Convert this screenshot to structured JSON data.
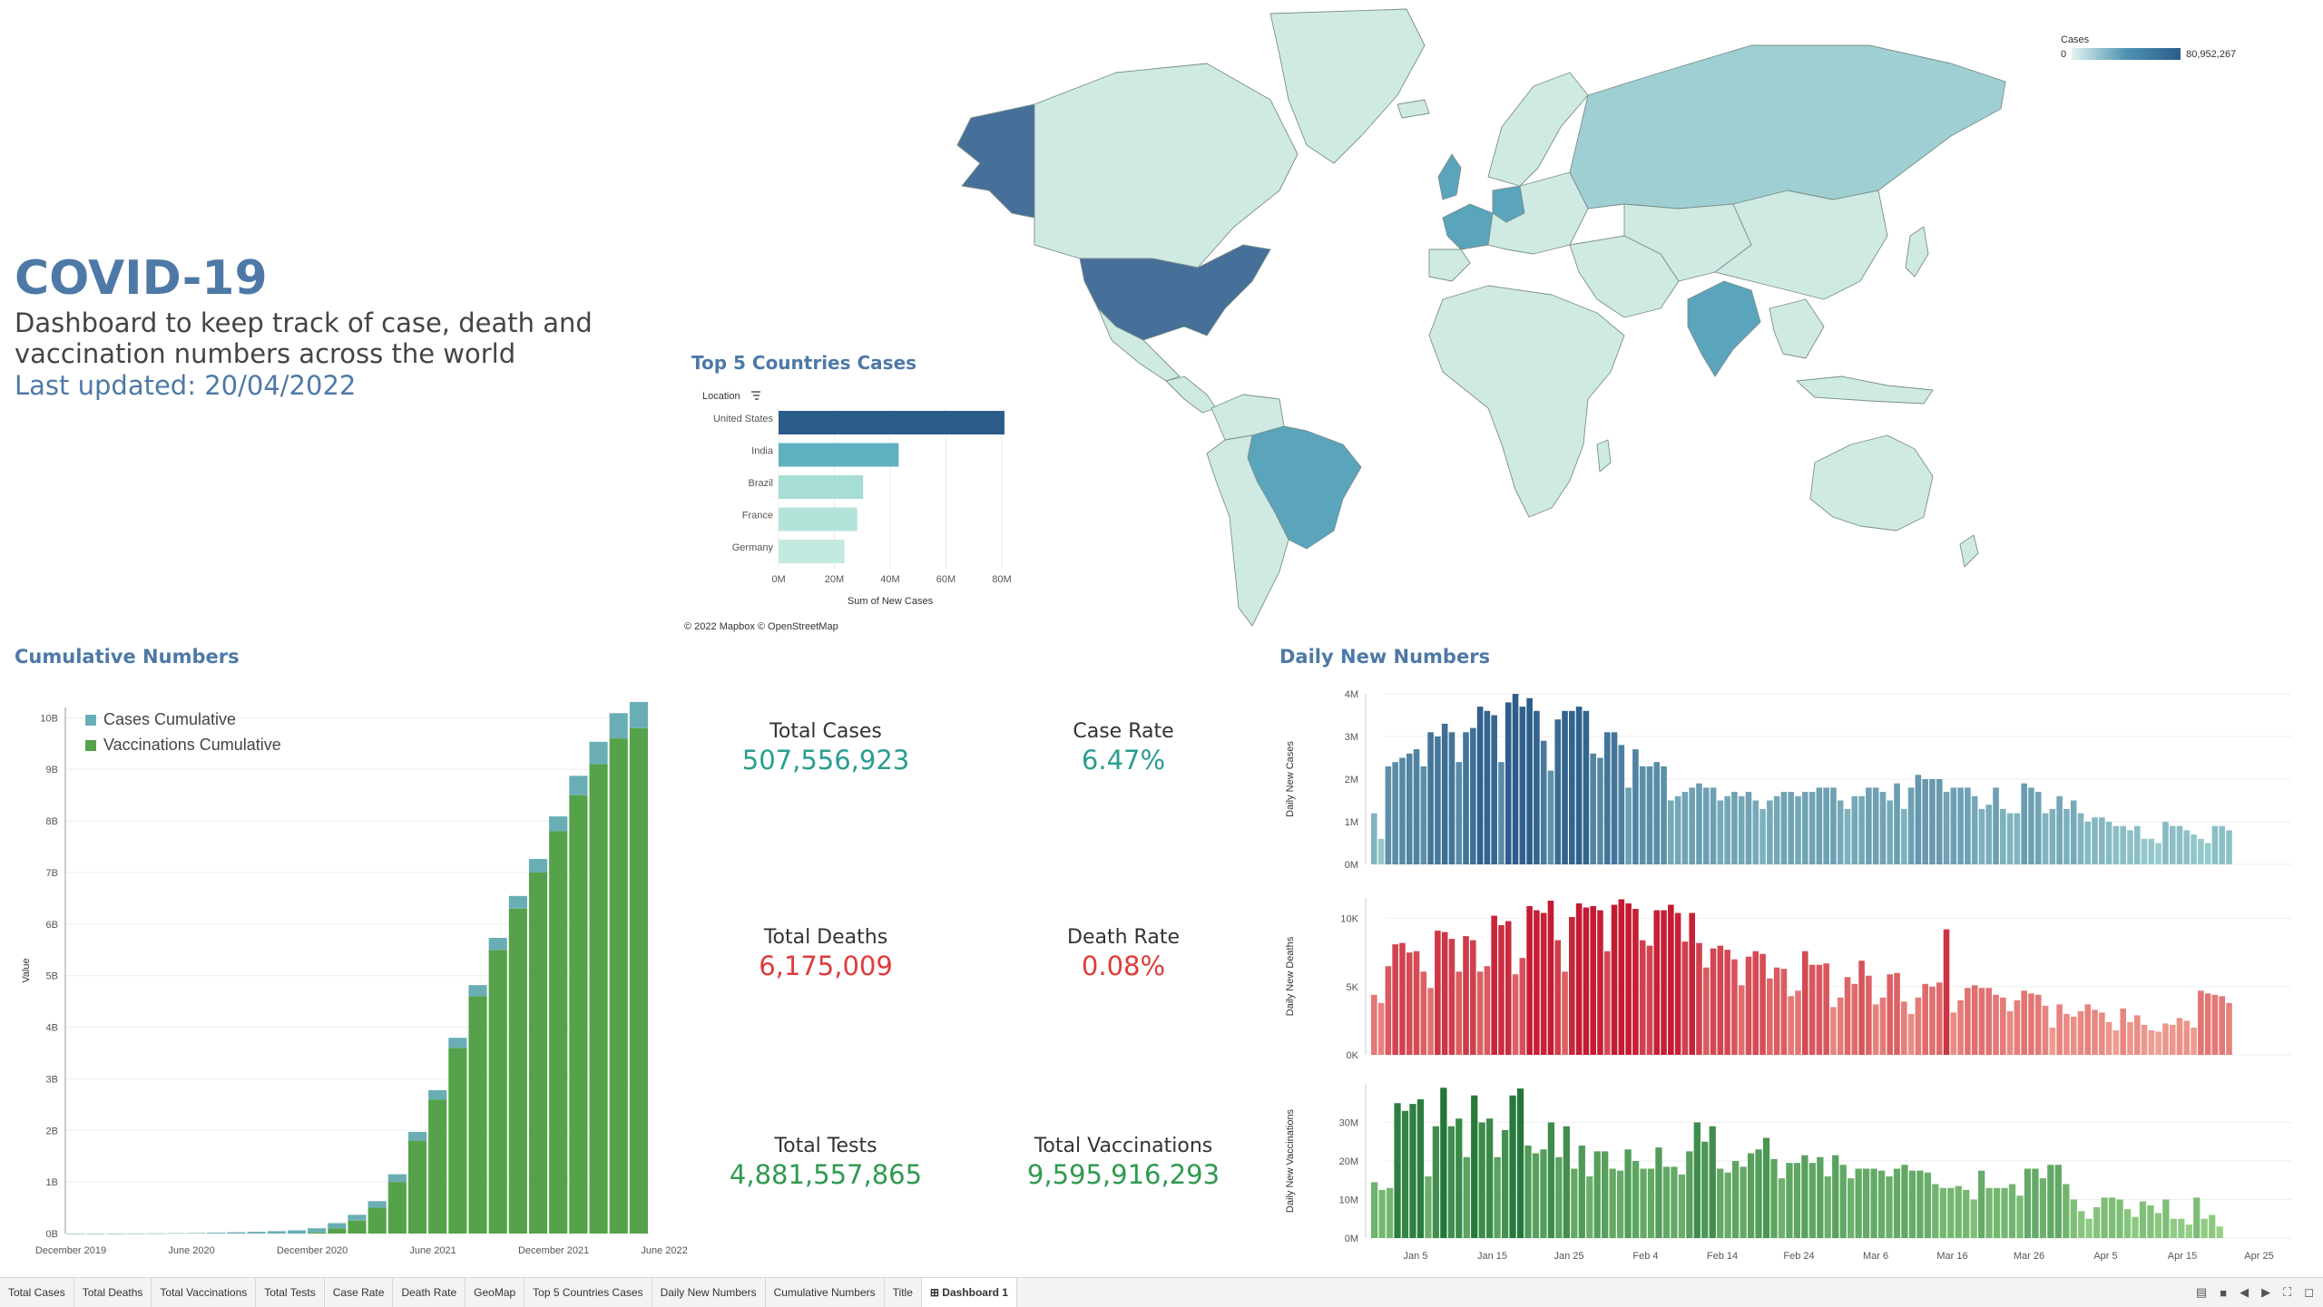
{
  "header": {
    "title": "COVID-19",
    "subtitle": "Dashboard to keep track of case, death and vaccination numbers across the world",
    "updated": "Last updated: 20/04/2022"
  },
  "map": {
    "legend_title": "Cases",
    "legend_min": "0",
    "legend_max": "80,952,267",
    "attribution": "© 2022 Mapbox © OpenStreetMap",
    "colors": {
      "low": "#cfe9e3",
      "mid": "#5aa4bc",
      "high": "#466f99"
    }
  },
  "top5": {
    "title": "Top 5 Countries Cases",
    "header_label": "Location",
    "xlabel": "Sum of New Cases",
    "ticks": [
      "0M",
      "20M",
      "40M",
      "60M",
      "80M"
    ],
    "chart_data": {
      "type": "bar",
      "categories": [
        "United States",
        "India",
        "Brazil",
        "France",
        "Germany"
      ],
      "values": [
        80.95,
        43.05,
        30.3,
        28.2,
        23.6
      ],
      "xlim": [
        0,
        80
      ],
      "orientation": "horizontal",
      "colors": [
        "#2c5c8a",
        "#5fb1c1",
        "#a6ddd4",
        "#b4e3da",
        "#c3eae1"
      ]
    }
  },
  "cumulative": {
    "title": "Cumulative Numbers",
    "ylabel": "Value",
    "yticks": [
      "0B",
      "1B",
      "2B",
      "3B",
      "4B",
      "5B",
      "6B",
      "7B",
      "8B",
      "9B",
      "10B"
    ],
    "xticks": [
      "December 2019",
      "June 2020",
      "December 2020",
      "June 2021",
      "December 2021",
      "June 2022"
    ],
    "legend": [
      "Cases Cumulative",
      "Vaccinations Cumulative"
    ],
    "colors": {
      "cases": "#6aaeb5",
      "vacc": "#56a24a"
    },
    "chart_data": {
      "type": "bar",
      "stacked": true,
      "categories": [
        "Dec 2019",
        "Jan 2020",
        "Feb 2020",
        "Mar 2020",
        "Apr 2020",
        "May 2020",
        "Jun 2020",
        "Jul 2020",
        "Aug 2020",
        "Sep 2020",
        "Oct 2020",
        "Nov 2020",
        "Dec 2020",
        "Jan 2021",
        "Feb 2021",
        "Mar 2021",
        "Apr 2021",
        "May 2021",
        "Jun 2021",
        "Jul 2021",
        "Aug 2021",
        "Sep 2021",
        "Oct 2021",
        "Nov 2021",
        "Dec 2021",
        "Jan 2022",
        "Feb 2022",
        "Mar 2022",
        "Apr 2022"
      ],
      "series": [
        {
          "name": "Vaccinations Cumulative",
          "values": [
            0,
            0,
            0,
            0,
            0,
            0,
            0,
            0,
            0,
            0,
            0,
            0,
            0.02,
            0.1,
            0.25,
            0.5,
            1.0,
            1.8,
            2.6,
            3.6,
            4.6,
            5.5,
            6.3,
            7.0,
            7.8,
            8.5,
            9.1,
            9.6,
            9.8
          ]
        },
        {
          "name": "Cases Cumulative",
          "values": [
            0,
            0,
            0,
            0.001,
            0.003,
            0.006,
            0.01,
            0.017,
            0.025,
            0.033,
            0.046,
            0.062,
            0.082,
            0.102,
            0.113,
            0.128,
            0.15,
            0.17,
            0.18,
            0.195,
            0.217,
            0.233,
            0.245,
            0.262,
            0.288,
            0.375,
            0.435,
            0.49,
            0.507
          ]
        }
      ],
      "ylim": [
        0,
        10.2
      ]
    }
  },
  "kpis": {
    "total_cases_label": "Total Cases",
    "total_cases_value": "507,556,923",
    "case_rate_label": "Case Rate",
    "case_rate_value": "6.47%",
    "total_deaths_label": "Total Deaths",
    "total_deaths_value": "6,175,009",
    "death_rate_label": "Death Rate",
    "death_rate_value": "0.08%",
    "total_tests_label": "Total Tests",
    "total_tests_value": "4,881,557,865",
    "total_vacc_label": "Total Vaccinations",
    "total_vacc_value": "9,595,916,293"
  },
  "daily": {
    "title": "Daily New Numbers",
    "xticks": [
      "Jan 5",
      "Jan 15",
      "Jan 25",
      "Feb 4",
      "Feb 14",
      "Feb 24",
      "Mar 6",
      "Mar 16",
      "Mar 26",
      "Apr 5",
      "Apr 15",
      "Apr 25"
    ],
    "cases": {
      "ylabel": "Daily New Cases",
      "yticks": [
        "0M",
        "1M",
        "2M",
        "3M",
        "4M"
      ],
      "ymax": 4,
      "colors": {
        "low": "#a8dcd6",
        "high": "#2c5d8c"
      },
      "chart_data": {
        "type": "bar",
        "unit": "M",
        "values": [
          1.2,
          0.6,
          2.3,
          2.4,
          2.5,
          2.6,
          2.7,
          2.3,
          3.1,
          3.0,
          3.3,
          3.1,
          2.4,
          3.1,
          3.2,
          3.7,
          3.6,
          3.5,
          2.4,
          3.8,
          4.0,
          3.7,
          3.9,
          3.6,
          2.9,
          2.2,
          3.4,
          3.6,
          3.6,
          3.7,
          3.6,
          2.6,
          2.5,
          3.1,
          3.1,
          2.8,
          1.8,
          2.7,
          2.3,
          2.3,
          2.4,
          2.3,
          1.5,
          1.6,
          1.7,
          1.8,
          1.9,
          1.8,
          1.8,
          1.5,
          1.6,
          1.7,
          1.6,
          1.7,
          1.5,
          1.3,
          1.5,
          1.6,
          1.7,
          1.7,
          1.6,
          1.7,
          1.7,
          1.8,
          1.8,
          1.8,
          1.5,
          1.3,
          1.6,
          1.6,
          1.8,
          1.8,
          1.7,
          1.5,
          1.9,
          1.3,
          1.8,
          2.1,
          2.0,
          2.0,
          2.0,
          1.7,
          1.8,
          1.8,
          1.8,
          1.6,
          1.3,
          1.4,
          1.8,
          1.3,
          1.2,
          1.2,
          1.9,
          1.8,
          1.7,
          1.2,
          1.3,
          1.6,
          1.3,
          1.5,
          1.2,
          1.0,
          1.1,
          1.1,
          1.0,
          0.9,
          0.9,
          0.8,
          0.9,
          0.6,
          0.6,
          0.5,
          1.0,
          0.9,
          0.9,
          0.8,
          0.7,
          0.6,
          0.5,
          0.9,
          0.9,
          0.8
        ]
      }
    },
    "deaths": {
      "ylabel": "Daily New Deaths",
      "yticks": [
        "0K",
        "5K",
        "10K"
      ],
      "ymax": 11.5,
      "colors": {
        "low": "#f8b7a3",
        "high": "#c41a32"
      },
      "chart_data": {
        "type": "bar",
        "unit": "K",
        "values": [
          4.4,
          3.8,
          6.5,
          8.1,
          8.2,
          7.5,
          7.6,
          6.1,
          4.9,
          9.1,
          9.0,
          8.5,
          6.1,
          8.7,
          8.4,
          6.1,
          6.5,
          10.2,
          9.5,
          9.8,
          5.9,
          7.1,
          10.9,
          10.6,
          10.4,
          11.3,
          8.4,
          6.1,
          10.1,
          11.1,
          10.8,
          10.9,
          10.6,
          7.6,
          11.0,
          11.4,
          11.1,
          10.7,
          8.4,
          8.0,
          10.6,
          10.6,
          11.0,
          10.4,
          8.3,
          10.4,
          8.2,
          6.4,
          7.8,
          8.0,
          7.7,
          7.0,
          5.1,
          7.2,
          7.6,
          7.4,
          5.6,
          6.4,
          6.3,
          4.3,
          4.7,
          7.6,
          6.6,
          6.6,
          6.7,
          3.5,
          4.2,
          5.7,
          5.2,
          6.9,
          5.8,
          3.7,
          4.2,
          5.9,
          6.0,
          3.9,
          3.0,
          4.2,
          5.2,
          5.0,
          5.3,
          9.2,
          3.1,
          4.0,
          4.9,
          5.1,
          4.9,
          4.9,
          4.4,
          4.2,
          3.2,
          4.0,
          4.7,
          4.5,
          4.4,
          3.6,
          2.0,
          3.7,
          3.0,
          2.8,
          3.2,
          3.7,
          3.3,
          3.1,
          2.4,
          1.8,
          3.4,
          2.4,
          2.9,
          2.2,
          1.8,
          1.7,
          2.3,
          2.2,
          2.7,
          2.5,
          2.0,
          4.7,
          4.5,
          4.4,
          4.3,
          3.8
        ]
      }
    },
    "vaccinations": {
      "ylabel": "Daily New Vaccinations",
      "yticks": [
        "0M",
        "10M",
        "20M",
        "30M"
      ],
      "ymax": 40,
      "colors": {
        "low": "#9fd88d",
        "high": "#23773a"
      },
      "chart_data": {
        "type": "bar",
        "unit": "M",
        "values": [
          14.5,
          12.5,
          13.0,
          35.0,
          33.0,
          34.8,
          36.0,
          16.0,
          29.0,
          39.0,
          29.0,
          31.0,
          21.0,
          37.0,
          30.0,
          31.0,
          21.0,
          28.0,
          37.0,
          38.8,
          24.0,
          22.0,
          23.0,
          30.0,
          21.0,
          29.0,
          18.0,
          24.0,
          16.0,
          22.5,
          22.5,
          18.0,
          17.5,
          23.0,
          20.0,
          18.0,
          18.0,
          23.5,
          18.5,
          18.5,
          16.5,
          22.5,
          30.0,
          25.0,
          29.0,
          18.0,
          17.0,
          20.0,
          18.5,
          22.0,
          23.0,
          26.0,
          20.5,
          15.5,
          19.5,
          19.5,
          21.5,
          19.5,
          21.0,
          16.0,
          21.5,
          19.0,
          15.5,
          18.0,
          18.0,
          18.0,
          17.5,
          16.0,
          18.0,
          19.0,
          17.5,
          17.5,
          17.0,
          14.0,
          13.0,
          13.0,
          13.5,
          12.5,
          10.0,
          17.5,
          13.0,
          13.0,
          13.0,
          14.0,
          11.0,
          18.0,
          18.0,
          15.5,
          19.0,
          19.0,
          14.0,
          10.0,
          7.0,
          5.0,
          8.0,
          10.5,
          10.5,
          10.0,
          7.5,
          5.5,
          9.5,
          8.5,
          6.5,
          10.0,
          5.0,
          5.0,
          3.5,
          10.5,
          5.0,
          6.0,
          3.0
        ]
      }
    }
  },
  "tabs": [
    "Total Cases",
    "Total Deaths",
    "Total Vaccinations",
    "Total Tests",
    "Case Rate",
    "Death Rate",
    "GeoMap",
    "Top 5 Countries Cases",
    "Daily New Numbers",
    "Cumulative Numbers",
    "Title",
    "Dashboard 1"
  ],
  "active_tab": "Dashboard 1"
}
